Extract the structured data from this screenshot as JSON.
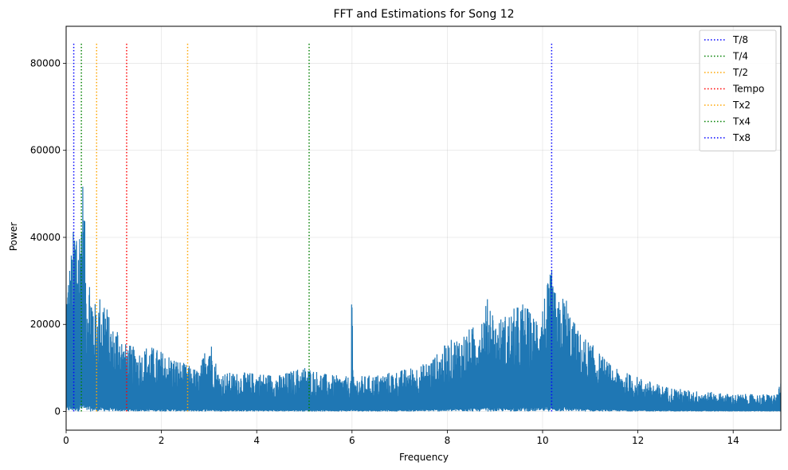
{
  "chart_data": {
    "type": "line",
    "title": "FFT and Estimations for Song 12",
    "xlabel": "Frequency",
    "ylabel": "Power",
    "xlim": [
      0,
      15
    ],
    "ylim": [
      -4300,
      88500
    ],
    "xticks": [
      0,
      2,
      4,
      6,
      8,
      10,
      12,
      14
    ],
    "yticks": [
      0,
      20000,
      40000,
      60000,
      80000
    ],
    "grid": true,
    "legend_position": "top-right",
    "spectrum": {
      "color": "#1f77b4",
      "envelope": [
        [
          0.0,
          30000
        ],
        [
          0.1,
          37000
        ],
        [
          0.17,
          44000
        ],
        [
          0.22,
          49000
        ],
        [
          0.27,
          43000
        ],
        [
          0.32,
          52000
        ],
        [
          0.36,
          56000
        ],
        [
          0.42,
          33000
        ],
        [
          0.5,
          33000
        ],
        [
          0.6,
          25000
        ],
        [
          0.7,
          27000
        ],
        [
          0.8,
          28000
        ],
        [
          0.9,
          22000
        ],
        [
          1.0,
          19000
        ],
        [
          1.1,
          21000
        ],
        [
          1.2,
          16000
        ],
        [
          1.4,
          15000
        ],
        [
          1.6,
          14000
        ],
        [
          1.7,
          15500
        ],
        [
          2.0,
          14000
        ],
        [
          2.2,
          13000
        ],
        [
          2.5,
          11000
        ],
        [
          2.8,
          9500
        ],
        [
          3.0,
          18500
        ],
        [
          3.2,
          9000
        ],
        [
          3.5,
          9000
        ],
        [
          4.0,
          9000
        ],
        [
          4.5,
          8500
        ],
        [
          5.0,
          10500
        ],
        [
          5.5,
          8500
        ],
        [
          5.98,
          8000
        ],
        [
          6.0,
          36800
        ],
        [
          6.02,
          8000
        ],
        [
          6.5,
          8500
        ],
        [
          7.0,
          9500
        ],
        [
          7.5,
          11000
        ],
        [
          7.8,
          13500
        ],
        [
          8.0,
          16000
        ],
        [
          8.3,
          18000
        ],
        [
          8.6,
          20000
        ],
        [
          8.9,
          27500
        ],
        [
          9.0,
          21000
        ],
        [
          9.3,
          23000
        ],
        [
          9.6,
          25500
        ],
        [
          9.8,
          22000
        ],
        [
          10.0,
          26000
        ],
        [
          10.2,
          33000
        ],
        [
          10.3,
          25000
        ],
        [
          10.48,
          27700
        ],
        [
          10.6,
          22000
        ],
        [
          10.8,
          18000
        ],
        [
          11.0,
          16000
        ],
        [
          11.2,
          13500
        ],
        [
          11.5,
          10000
        ],
        [
          12.0,
          8000
        ],
        [
          12.5,
          6000
        ],
        [
          13.0,
          5000
        ],
        [
          13.5,
          4500
        ],
        [
          14.0,
          4000
        ],
        [
          14.5,
          4000
        ],
        [
          14.9,
          4000
        ],
        [
          15.0,
          6500
        ]
      ]
    },
    "vlines_ymax": 84500,
    "vlines": [
      {
        "name": "T/8",
        "x": 0.16,
        "color": "#0000ff"
      },
      {
        "name": "T/4",
        "x": 0.32,
        "color": "#008000"
      },
      {
        "name": "T/2",
        "x": 0.64,
        "color": "#ffa500"
      },
      {
        "name": "Tempo",
        "x": 1.27,
        "color": "#ff0000"
      },
      {
        "name": "Tx2",
        "x": 2.55,
        "color": "#ffa500"
      },
      {
        "name": "Tx4",
        "x": 5.1,
        "color": "#008000"
      },
      {
        "name": "Tx8",
        "x": 10.19,
        "color": "#0000ff"
      }
    ]
  }
}
